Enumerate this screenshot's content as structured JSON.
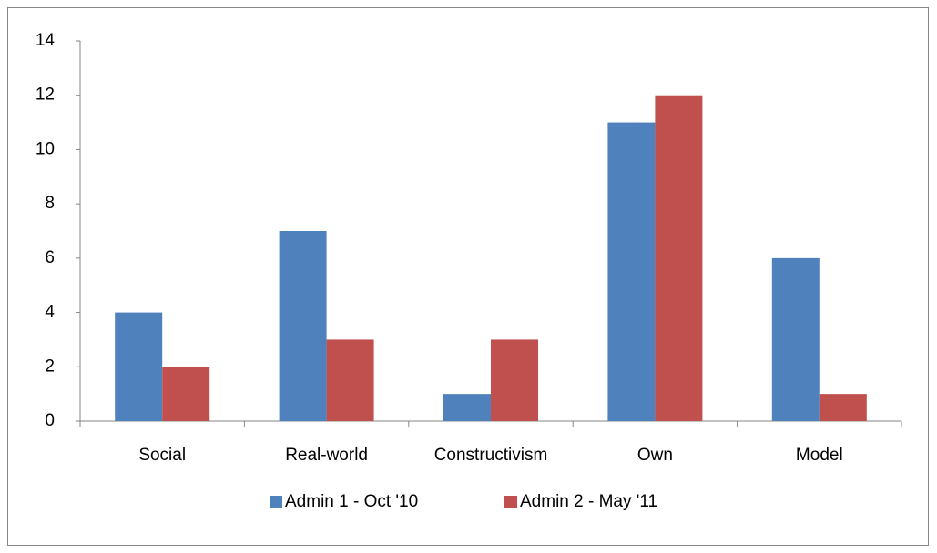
{
  "chart_data": {
    "type": "bar",
    "categories": [
      "Social",
      "Real-world",
      "Constructivism",
      "Own",
      "Model"
    ],
    "series": [
      {
        "name": "Admin 1 - Oct '10",
        "color": "#4f81bd",
        "values": [
          4,
          7,
          1,
          11,
          6
        ]
      },
      {
        "name": "Admin 2 - May '11",
        "color": "#c0504d",
        "values": [
          2,
          3,
          3,
          12,
          1
        ]
      }
    ],
    "ylim": [
      0,
      14
    ],
    "yticks": [
      0,
      2,
      4,
      6,
      8,
      10,
      12,
      14
    ],
    "grid": false,
    "legend": "bottom"
  }
}
